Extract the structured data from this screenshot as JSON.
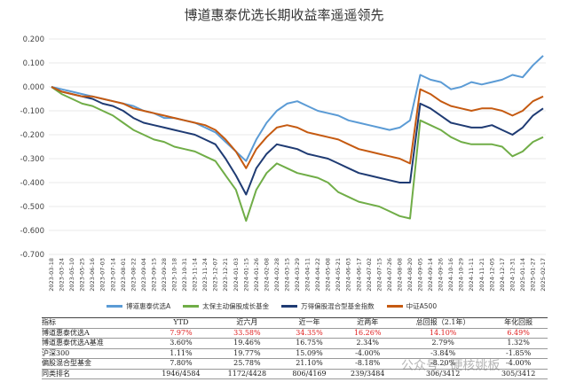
{
  "chart_data": {
    "type": "line",
    "title": "博道惠泰优选长期收益率遥遥领先",
    "y_ticks": [
      "0.200",
      "0.100",
      "0.000",
      "-0.100",
      "-0.200",
      "-0.300",
      "-0.400",
      "-0.500",
      "-0.600",
      "-0.700"
    ],
    "ylim": [
      -0.7,
      0.2
    ],
    "x_ticks": [
      "2023-03-18",
      "2023-03-24",
      "2023-05-10",
      "2023-05-25",
      "2023-06-16",
      "2023-07-03",
      "2023-07-14",
      "2023-08-01",
      "2023-08-22",
      "2023-09-04",
      "2023-09-15",
      "2023-09-28",
      "2023-10-18",
      "2023-10-31",
      "2023-11-14",
      "2023-11-24",
      "2023-12-07",
      "2023-12-21",
      "2024-01-03",
      "2024-01-15",
      "2024-01-26",
      "2024-02-08",
      "2024-02-28",
      "2024-03-15",
      "2024-03-29",
      "2024-04-11",
      "2024-04-22",
      "2024-05-08",
      "2024-05-21",
      "2024-06-03",
      "2024-06-17",
      "2024-07-02",
      "2024-07-15",
      "2024-07-26",
      "2024-08-08",
      "2024-08-20",
      "2024-09-05",
      "2024-09-14",
      "2024-09-26",
      "2024-10-16",
      "2024-10-29",
      "2024-11-11",
      "2024-11-21",
      "2024-12-05",
      "2024-12-17",
      "2024-12-31",
      "2025-01-14",
      "2025-01-27",
      "2025-02-17"
    ],
    "grid": true,
    "legend_position": "bottom",
    "series": [
      {
        "name": "博道惠泰优选A",
        "color": "#5b9bd5",
        "values": [
          0.0,
          -0.01,
          -0.02,
          -0.03,
          -0.04,
          -0.05,
          -0.06,
          -0.07,
          -0.08,
          -0.1,
          -0.11,
          -0.13,
          -0.13,
          -0.14,
          -0.15,
          -0.17,
          -0.19,
          -0.23,
          -0.27,
          -0.31,
          -0.22,
          -0.15,
          -0.1,
          -0.07,
          -0.06,
          -0.08,
          -0.1,
          -0.11,
          -0.12,
          -0.14,
          -0.15,
          -0.16,
          -0.17,
          -0.18,
          -0.17,
          -0.14,
          0.05,
          0.03,
          0.02,
          -0.01,
          0.0,
          0.02,
          0.01,
          0.02,
          0.03,
          0.05,
          0.04,
          0.09,
          0.13
        ]
      },
      {
        "name": "太保主动偏股成长基金",
        "color": "#70ad47",
        "values": [
          0.0,
          -0.03,
          -0.05,
          -0.07,
          -0.08,
          -0.1,
          -0.12,
          -0.15,
          -0.18,
          -0.2,
          -0.22,
          -0.23,
          -0.25,
          -0.26,
          -0.27,
          -0.29,
          -0.31,
          -0.37,
          -0.43,
          -0.56,
          -0.43,
          -0.36,
          -0.32,
          -0.34,
          -0.36,
          -0.37,
          -0.38,
          -0.4,
          -0.44,
          -0.46,
          -0.48,
          -0.49,
          -0.5,
          -0.52,
          -0.54,
          -0.55,
          -0.14,
          -0.16,
          -0.18,
          -0.21,
          -0.23,
          -0.24,
          -0.24,
          -0.24,
          -0.25,
          -0.29,
          -0.27,
          -0.23,
          -0.21
        ]
      },
      {
        "name": "万得偏股混合型基金指数",
        "color": "#1f3b73",
        "values": [
          0.0,
          -0.02,
          -0.03,
          -0.04,
          -0.05,
          -0.07,
          -0.08,
          -0.1,
          -0.13,
          -0.15,
          -0.16,
          -0.17,
          -0.18,
          -0.19,
          -0.2,
          -0.22,
          -0.24,
          -0.3,
          -0.37,
          -0.45,
          -0.34,
          -0.28,
          -0.24,
          -0.25,
          -0.26,
          -0.28,
          -0.29,
          -0.3,
          -0.32,
          -0.34,
          -0.36,
          -0.37,
          -0.38,
          -0.39,
          -0.4,
          -0.4,
          -0.07,
          -0.09,
          -0.12,
          -0.15,
          -0.16,
          -0.17,
          -0.17,
          -0.16,
          -0.18,
          -0.2,
          -0.17,
          -0.12,
          -0.09
        ]
      },
      {
        "name": "中证A500",
        "color": "#c55a11",
        "values": [
          0.0,
          -0.02,
          -0.03,
          -0.04,
          -0.04,
          -0.05,
          -0.06,
          -0.07,
          -0.09,
          -0.1,
          -0.11,
          -0.12,
          -0.13,
          -0.14,
          -0.15,
          -0.16,
          -0.18,
          -0.22,
          -0.27,
          -0.34,
          -0.26,
          -0.21,
          -0.17,
          -0.16,
          -0.17,
          -0.19,
          -0.2,
          -0.21,
          -0.22,
          -0.24,
          -0.26,
          -0.27,
          -0.28,
          -0.29,
          -0.3,
          -0.32,
          -0.01,
          -0.03,
          -0.06,
          -0.08,
          -0.09,
          -0.1,
          -0.09,
          -0.09,
          -0.1,
          -0.12,
          -0.1,
          -0.06,
          -0.04
        ]
      }
    ]
  },
  "table": {
    "headers": [
      "指标",
      "YTD",
      "近六月",
      "近一年",
      "近两年",
      "总回报（2.1年）",
      "年化回报"
    ],
    "rows": [
      {
        "cells": [
          "博道惠泰优选A",
          "7.97%",
          "33.58%",
          "34.35%",
          "16.26%",
          "14.10%",
          "6.49%"
        ],
        "highlight": true
      },
      {
        "cells": [
          "博道惠泰优选A基准",
          "3.60%",
          "19.46%",
          "16.75%",
          "2.34%",
          "2.79%",
          "1.32%"
        ],
        "highlight": false
      },
      {
        "cells": [
          "沪深300",
          "1.11%",
          "19.77%",
          "15.09%",
          "-4.00%",
          "-3.84%",
          "-1.85%"
        ],
        "highlight": false
      },
      {
        "cells": [
          "偏股混合型基金",
          "7.80%",
          "25.78%",
          "21.10%",
          "-8.18%",
          "-8.20%",
          "-4.00%"
        ],
        "highlight": false
      },
      {
        "cells": [
          "同类排名",
          "1946/4584",
          "1172/4428",
          "806/4169",
          "239/3484",
          "306/3412",
          "305/3412"
        ],
        "highlight": false
      }
    ]
  },
  "watermark": "公众号 · 硬核姚板"
}
